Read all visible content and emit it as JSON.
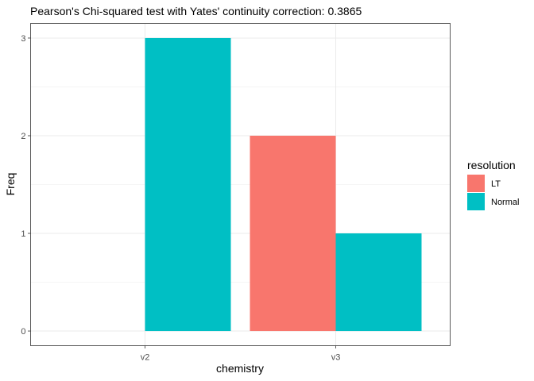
{
  "chart_data": {
    "type": "bar",
    "title": "Pearson's Chi-squared test with Yates' continuity correction: 0.3865",
    "xlabel": "chemistry",
    "ylabel": "Freq",
    "categories": [
      "v2",
      "v3"
    ],
    "ylim": [
      0,
      3
    ],
    "yticks": [
      0,
      1,
      2,
      3
    ],
    "grid": true,
    "legend": {
      "title": "resolution",
      "position": "right"
    },
    "series": [
      {
        "name": "LT",
        "color": "#F8766D",
        "values": [
          null,
          2
        ]
      },
      {
        "name": "Normal",
        "color": "#00BFC4",
        "values": [
          3,
          1
        ]
      }
    ]
  }
}
